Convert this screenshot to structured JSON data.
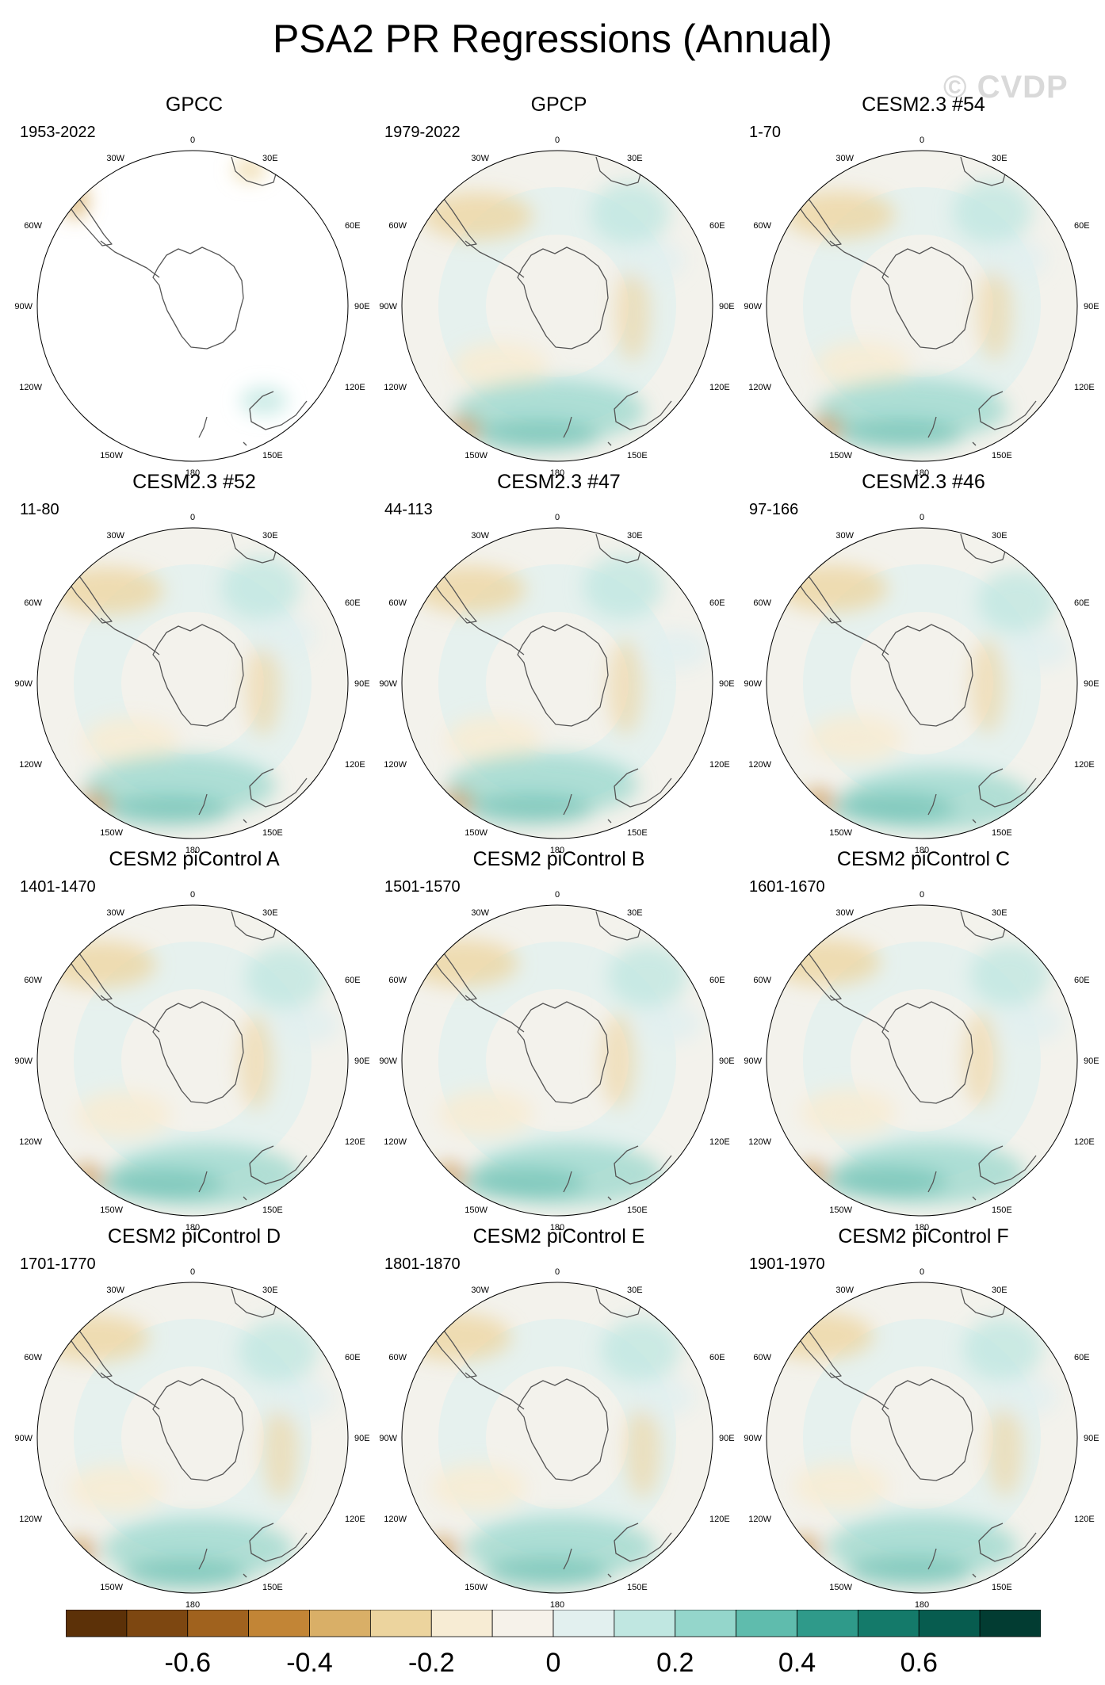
{
  "title": "PSA2 PR Regressions (Annual)",
  "watermark": "© CVDP",
  "lon_labels": {
    "top": "0",
    "bottom": "180",
    "upper_left": "30W",
    "upper_right": "30E",
    "left_upper": "60W",
    "right_upper": "60E",
    "left_mid": "90W",
    "right_mid": "90E",
    "left_lower": "120W",
    "right_lower": "120E",
    "lower_left": "150W",
    "lower_right": "150E"
  },
  "panels": [
    {
      "title": "GPCC",
      "period": "1953-2022",
      "coverage": "land-only"
    },
    {
      "title": "GPCP",
      "period": "1979-2022",
      "coverage": "full"
    },
    {
      "title": "CESM2.3 #54",
      "period": "1-70",
      "coverage": "full"
    },
    {
      "title": "CESM2.3 #52",
      "period": "11-80",
      "coverage": "full"
    },
    {
      "title": "CESM2.3 #47",
      "period": "44-113",
      "coverage": "full"
    },
    {
      "title": "CESM2.3 #46",
      "period": "97-166",
      "coverage": "full"
    },
    {
      "title": "CESM2 piControl A",
      "period": "1401-1470",
      "coverage": "full"
    },
    {
      "title": "CESM2 piControl B",
      "period": "1501-1570",
      "coverage": "full"
    },
    {
      "title": "CESM2 piControl C",
      "period": "1601-1670",
      "coverage": "full"
    },
    {
      "title": "CESM2 piControl D",
      "period": "1701-1770",
      "coverage": "full"
    },
    {
      "title": "CESM2 piControl E",
      "period": "1801-1870",
      "coverage": "full"
    },
    {
      "title": "CESM2 piControl F",
      "period": "1901-1970",
      "coverage": "full"
    }
  ],
  "colorbar": {
    "colors": [
      "#5c3108",
      "#7d4711",
      "#a0621e",
      "#c28536",
      "#d9af67",
      "#ecd49e",
      "#f7ecd4",
      "#f6f2ea",
      "#e2f0ef",
      "#c0e7e1",
      "#94d6cb",
      "#5fbcad",
      "#2f9a8a",
      "#147a6a",
      "#075c4f",
      "#023c32"
    ],
    "tick_labels": [
      "-0.6",
      "-0.4",
      "-0.2",
      "0",
      "0.2",
      "0.4",
      "0.6"
    ],
    "tick_values": [
      -0.6,
      -0.4,
      -0.2,
      0,
      0.2,
      0.4,
      0.6
    ],
    "range": [
      -0.8,
      0.8
    ]
  }
}
